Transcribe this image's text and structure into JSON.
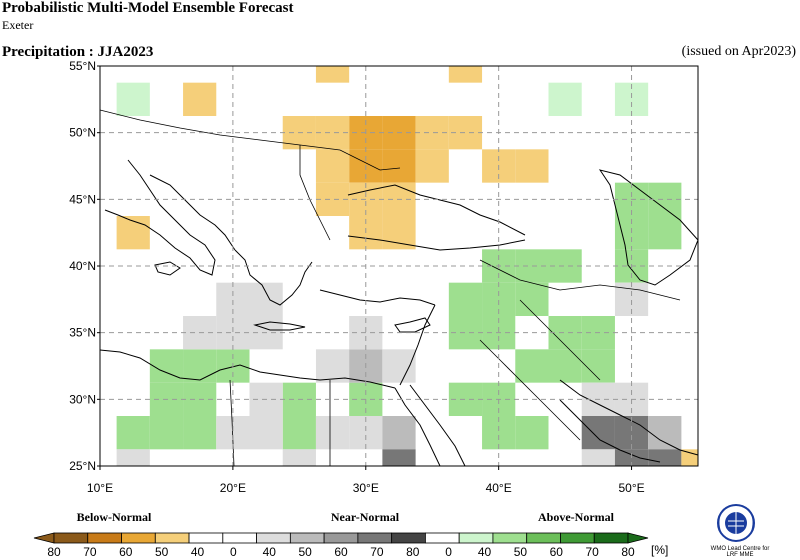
{
  "header": {
    "title": "Probabilistic Multi-Model Ensemble Forecast",
    "subtitle": "Exeter",
    "variable": "Precipitation : JJA2023",
    "issued": "(issued on Apr2023)"
  },
  "map": {
    "lon_range": [
      10,
      55
    ],
    "lat_range": [
      25,
      55
    ],
    "cell_deg": 2.5,
    "lat_ticks": [
      "25°N",
      "30°N",
      "35°N",
      "40°N",
      "45°N",
      "50°N",
      "55°N"
    ],
    "lon_ticks": [
      "10°E",
      "20°E",
      "30°E",
      "40°E",
      "50°E"
    ],
    "grid_lines": "dashed",
    "land_mask_color": "#ccf0cc",
    "cells": [
      {
        "lon": 12.5,
        "lat": 52.5,
        "cat": "A",
        "p": 40
      },
      {
        "lon": 17.5,
        "lat": 52.5,
        "cat": "B",
        "p": 40
      },
      {
        "lon": 27.5,
        "lat": 55.0,
        "cat": "B",
        "p": 40
      },
      {
        "lon": 37.5,
        "lat": 55.0,
        "cat": "B",
        "p": 40
      },
      {
        "lon": 37.5,
        "lat": 50.0,
        "cat": "B",
        "p": 40
      },
      {
        "lon": 32.5,
        "lat": 50.0,
        "cat": "B",
        "p": 50
      },
      {
        "lon": 30.0,
        "lat": 47.5,
        "cat": "B",
        "p": 50
      },
      {
        "lon": 32.5,
        "lat": 47.5,
        "cat": "B",
        "p": 50
      },
      {
        "lon": 30.0,
        "lat": 50.0,
        "cat": "B",
        "p": 50
      },
      {
        "lon": 27.5,
        "lat": 50.0,
        "cat": "B",
        "p": 40
      },
      {
        "lon": 25.0,
        "lat": 50.0,
        "cat": "B",
        "p": 40
      },
      {
        "lon": 35.0,
        "lat": 50.0,
        "cat": "B",
        "p": 40
      },
      {
        "lon": 35.0,
        "lat": 47.5,
        "cat": "B",
        "p": 40
      },
      {
        "lon": 27.5,
        "lat": 47.5,
        "cat": "B",
        "p": 40
      },
      {
        "lon": 27.5,
        "lat": 45.0,
        "cat": "B",
        "p": 40
      },
      {
        "lon": 30.0,
        "lat": 45.0,
        "cat": "B",
        "p": 40
      },
      {
        "lon": 32.5,
        "lat": 45.0,
        "cat": "B",
        "p": 40
      },
      {
        "lon": 30.0,
        "lat": 42.5,
        "cat": "B",
        "p": 40
      },
      {
        "lon": 32.5,
        "lat": 42.5,
        "cat": "B",
        "p": 40
      },
      {
        "lon": 40.0,
        "lat": 47.5,
        "cat": "B",
        "p": 40
      },
      {
        "lon": 42.5,
        "lat": 47.5,
        "cat": "B",
        "p": 40
      },
      {
        "lon": 12.5,
        "lat": 42.5,
        "cat": "B",
        "p": 40
      },
      {
        "lon": 45.0,
        "lat": 52.5,
        "cat": "A",
        "p": 40
      },
      {
        "lon": 50.0,
        "lat": 52.5,
        "cat": "A",
        "p": 40
      },
      {
        "lon": 42.5,
        "lat": 40.0,
        "cat": "A",
        "p": 50
      },
      {
        "lon": 40.0,
        "lat": 40.0,
        "cat": "A",
        "p": 50
      },
      {
        "lon": 40.0,
        "lat": 37.5,
        "cat": "A",
        "p": 50
      },
      {
        "lon": 45.0,
        "lat": 40.0,
        "cat": "A",
        "p": 50
      },
      {
        "lon": 37.5,
        "lat": 37.5,
        "cat": "A",
        "p": 50
      },
      {
        "lon": 42.5,
        "lat": 37.5,
        "cat": "A",
        "p": 50
      },
      {
        "lon": 45.0,
        "lat": 35.0,
        "cat": "A",
        "p": 50
      },
      {
        "lon": 47.5,
        "lat": 35.0,
        "cat": "A",
        "p": 50
      },
      {
        "lon": 42.5,
        "lat": 32.5,
        "cat": "A",
        "p": 50
      },
      {
        "lon": 45.0,
        "lat": 32.5,
        "cat": "A",
        "p": 50
      },
      {
        "lon": 37.5,
        "lat": 35.0,
        "cat": "A",
        "p": 50
      },
      {
        "lon": 40.0,
        "lat": 35.0,
        "cat": "A",
        "p": 50
      },
      {
        "lon": 47.5,
        "lat": 32.5,
        "cat": "A",
        "p": 50
      },
      {
        "lon": 52.5,
        "lat": 42.5,
        "cat": "A",
        "p": 50
      },
      {
        "lon": 50.0,
        "lat": 45.0,
        "cat": "A",
        "p": 50
      },
      {
        "lon": 52.5,
        "lat": 45.0,
        "cat": "A",
        "p": 50
      },
      {
        "lon": 50.0,
        "lat": 40.0,
        "cat": "A",
        "p": 50
      },
      {
        "lon": 50.0,
        "lat": 42.5,
        "cat": "A",
        "p": 50
      },
      {
        "lon": 17.5,
        "lat": 32.5,
        "cat": "A",
        "p": 50
      },
      {
        "lon": 20.0,
        "lat": 32.5,
        "cat": "A",
        "p": 50
      },
      {
        "lon": 15.0,
        "lat": 32.5,
        "cat": "A",
        "p": 50
      },
      {
        "lon": 15.0,
        "lat": 30.0,
        "cat": "A",
        "p": 50
      },
      {
        "lon": 17.5,
        "lat": 30.0,
        "cat": "A",
        "p": 50
      },
      {
        "lon": 15.0,
        "lat": 27.5,
        "cat": "A",
        "p": 50
      },
      {
        "lon": 17.5,
        "lat": 27.5,
        "cat": "A",
        "p": 50
      },
      {
        "lon": 12.5,
        "lat": 27.5,
        "cat": "A",
        "p": 50
      },
      {
        "lon": 40.0,
        "lat": 27.5,
        "cat": "A",
        "p": 50
      },
      {
        "lon": 40.0,
        "lat": 30.0,
        "cat": "A",
        "p": 50
      },
      {
        "lon": 42.5,
        "lat": 27.5,
        "cat": "A",
        "p": 50
      },
      {
        "lon": 37.5,
        "lat": 30.0,
        "cat": "A",
        "p": 50
      },
      {
        "lon": 25.0,
        "lat": 30.0,
        "cat": "A",
        "p": 50
      },
      {
        "lon": 25.0,
        "lat": 27.5,
        "cat": "A",
        "p": 50
      },
      {
        "lon": 30.0,
        "lat": 30.0,
        "cat": "A",
        "p": 50
      },
      {
        "lon": 20.0,
        "lat": 35.0,
        "cat": "N",
        "p": 40
      },
      {
        "lon": 22.5,
        "lat": 35.0,
        "cat": "N",
        "p": 40
      },
      {
        "lon": 20.0,
        "lat": 37.5,
        "cat": "N",
        "p": 40
      },
      {
        "lon": 22.5,
        "lat": 37.5,
        "cat": "N",
        "p": 40
      },
      {
        "lon": 17.5,
        "lat": 35.0,
        "cat": "N",
        "p": 40
      },
      {
        "lon": 27.5,
        "lat": 32.5,
        "cat": "N",
        "p": 40
      },
      {
        "lon": 30.0,
        "lat": 32.5,
        "cat": "N",
        "p": 50
      },
      {
        "lon": 32.5,
        "lat": 32.5,
        "cat": "N",
        "p": 40
      },
      {
        "lon": 30.0,
        "lat": 35.0,
        "cat": "N",
        "p": 40
      },
      {
        "lon": 22.5,
        "lat": 30.0,
        "cat": "N",
        "p": 40
      },
      {
        "lon": 22.5,
        "lat": 27.5,
        "cat": "N",
        "p": 40
      },
      {
        "lon": 20.0,
        "lat": 27.5,
        "cat": "N",
        "p": 40
      },
      {
        "lon": 27.5,
        "lat": 27.5,
        "cat": "N",
        "p": 40
      },
      {
        "lon": 30.0,
        "lat": 27.5,
        "cat": "N",
        "p": 40
      },
      {
        "lon": 32.5,
        "lat": 27.5,
        "cat": "N",
        "p": 50
      },
      {
        "lon": 32.5,
        "lat": 25.0,
        "cat": "N",
        "p": 60
      },
      {
        "lon": 12.5,
        "lat": 25.0,
        "cat": "N",
        "p": 40
      },
      {
        "lon": 25.0,
        "lat": 25.0,
        "cat": "N",
        "p": 40
      },
      {
        "lon": 47.5,
        "lat": 30.0,
        "cat": "N",
        "p": 40
      },
      {
        "lon": 50.0,
        "lat": 30.0,
        "cat": "N",
        "p": 40
      },
      {
        "lon": 50.0,
        "lat": 27.5,
        "cat": "N",
        "p": 60
      },
      {
        "lon": 52.5,
        "lat": 27.5,
        "cat": "N",
        "p": 50
      },
      {
        "lon": 47.5,
        "lat": 27.5,
        "cat": "N",
        "p": 60
      },
      {
        "lon": 47.5,
        "lat": 25.0,
        "cat": "N",
        "p": 40
      },
      {
        "lon": 50.0,
        "lat": 25.0,
        "cat": "N",
        "p": 60
      },
      {
        "lon": 52.5,
        "lat": 25.0,
        "cat": "N",
        "p": 60
      },
      {
        "lon": 50.0,
        "lat": 37.5,
        "cat": "N",
        "p": 40
      },
      {
        "lon": 55.0,
        "lat": 25.0,
        "cat": "B",
        "p": 40
      }
    ]
  },
  "legend": {
    "below_label": "Below-Normal",
    "near_label": "Near-Normal",
    "above_label": "Above-Normal",
    "unit": "[%]",
    "tick_labels": [
      "80",
      "70",
      "60",
      "50",
      "40",
      "0",
      "40",
      "50",
      "60",
      "70",
      "80",
      "0",
      "40",
      "50",
      "60",
      "70",
      "80"
    ],
    "colors": [
      "#8b5a1a",
      "#c87b18",
      "#e8a735",
      "#f5cf7a",
      "#ffffff",
      "#ffffff",
      "#dddddd",
      "#bbbbbb",
      "#999999",
      "#777777",
      "#444444",
      "#ffffff",
      "#cdf5cd",
      "#9edf8f",
      "#6cbf5a",
      "#3f9a35",
      "#1a6b1a"
    ]
  },
  "logo": {
    "name": "wmo-emblem",
    "text_line1": "WMO Lead Centre for",
    "text_line2": "LRF MME"
  }
}
